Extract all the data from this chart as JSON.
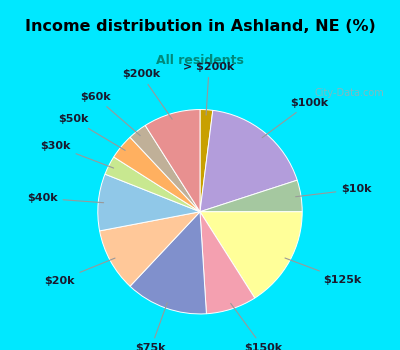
{
  "title": "Income distribution in Ashland, NE (%)",
  "subtitle": "All residents",
  "bg_outer": "#00e8ff",
  "bg_chart": "#d6f0e0",
  "labels": [
    "> $200k",
    "$100k",
    "$10k",
    "$125k",
    "$150k",
    "$75k",
    "$20k",
    "$40k",
    "$30k",
    "$50k",
    "$60k",
    "$200k"
  ],
  "sizes": [
    2,
    18,
    5,
    16,
    8,
    13,
    10,
    9,
    3,
    4,
    3,
    9
  ],
  "colors": [
    "#c8a000",
    "#b39ddb",
    "#a5c8a0",
    "#ffff99",
    "#f4a0b0",
    "#8090cc",
    "#ffc899",
    "#90c8e8",
    "#c8e890",
    "#ffb060",
    "#c0b098",
    "#e89090"
  ],
  "title_fontsize": 11.5,
  "subtitle_fontsize": 9,
  "label_fontsize": 8
}
